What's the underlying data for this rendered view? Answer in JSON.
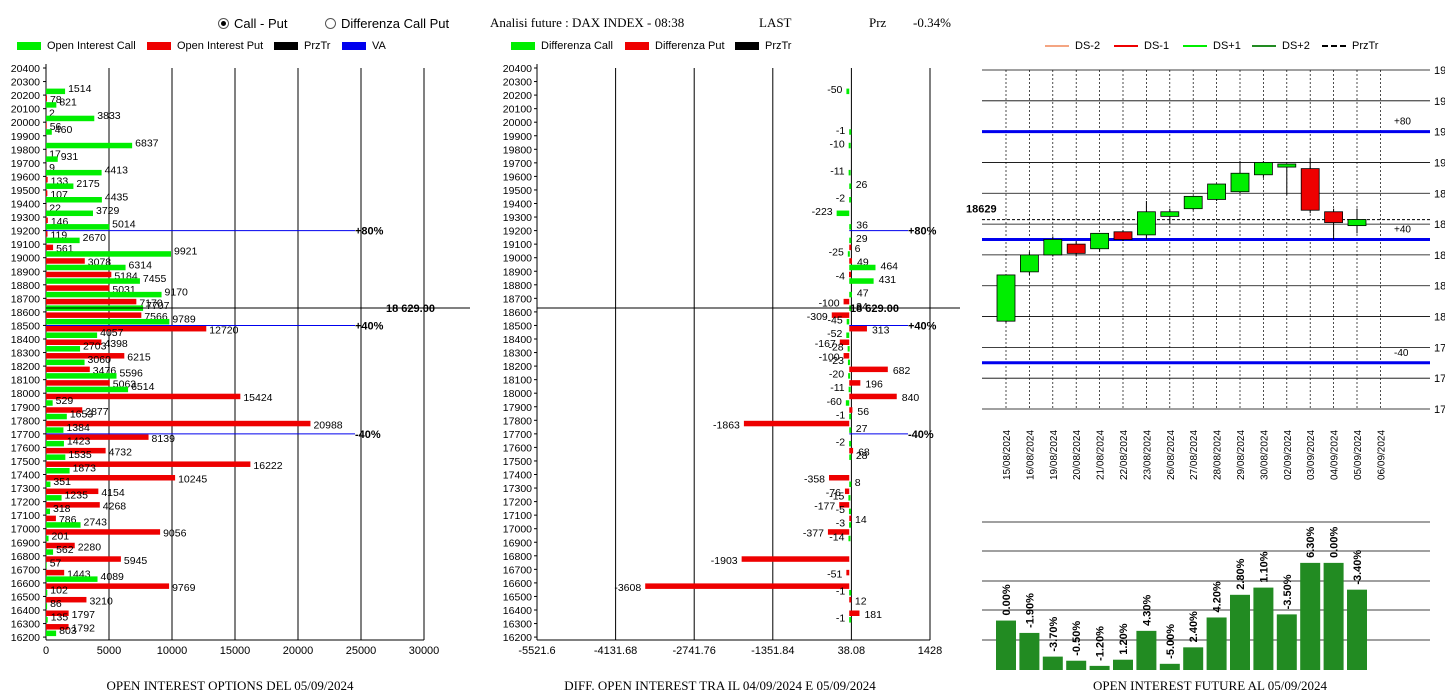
{
  "header": {
    "radio_call_put": "Call - Put",
    "radio_diff": "Differenza Call Put",
    "analisi": "Analisi future : DAX INDEX - 08:38",
    "last_label": "LAST",
    "prz_label": "Prz",
    "prz_value": "-0.34%"
  },
  "legend1": {
    "oi_call": "Open Interest Call",
    "oi_put": "Open Interest Put",
    "prztr": "PrzTr",
    "va": "VA"
  },
  "legend2": {
    "diff_call": "Differenza Call",
    "diff_put": "Differenza Put",
    "prztr": "PrzTr"
  },
  "legend3": {
    "ds_m2": "DS-2",
    "ds_m1": "DS-1",
    "ds_p1": "DS+1",
    "ds_p2": "DS+2",
    "prztr": "PrzTr"
  },
  "footers": {
    "chart1": "OPEN INTEREST OPTIONS DEL 05/09/2024",
    "chart2": "DIFF. OPEN INTEREST TRA IL 04/09/2024 E 05/09/2024",
    "chart3": "OPEN INTEREST FUTURE AL 05/09/2024"
  },
  "colors": {
    "call": "#00ee00",
    "put": "#ee0000",
    "va": "#0000ee",
    "bull": "#00ee00",
    "bear": "#ee0000",
    "oi_bar": "#228b22"
  },
  "chart_data": [
    {
      "type": "bar",
      "orientation": "horizontal",
      "strikes": [
        20400,
        20300,
        20200,
        20100,
        20000,
        19900,
        19800,
        19700,
        19600,
        19500,
        19400,
        19300,
        19200,
        19100,
        19000,
        18900,
        18800,
        18700,
        18600,
        18500,
        18400,
        18300,
        18200,
        18100,
        18000,
        17900,
        17800,
        17700,
        17600,
        17500,
        17400,
        17300,
        17200,
        17100,
        17000,
        16900,
        16800,
        16700,
        16600,
        16500,
        16400,
        16300,
        16200
      ],
      "series": [
        {
          "name": "Open Interest Call",
          "values": [
            0,
            0,
            1514,
            821,
            3833,
            460,
            6837,
            931,
            4413,
            2175,
            4435,
            3729,
            5014,
            2670,
            9921,
            6314,
            7455,
            9170,
            7707,
            9789,
            4057,
            2703,
            3060,
            5596,
            6514,
            529,
            1653,
            1384,
            1423,
            1535,
            1873,
            351,
            1235,
            318,
            2743,
            201,
            562,
            57,
            4089,
            102,
            86,
            135,
            803
          ]
        },
        {
          "name": "Open Interest Put",
          "values": [
            0,
            0,
            78,
            2,
            56,
            0,
            17,
            9,
            133,
            107,
            22,
            146,
            119,
            561,
            3078,
            5184,
            5031,
            7170,
            7566,
            12720,
            4398,
            6215,
            3476,
            5063,
            15424,
            2877,
            20988,
            8139,
            4732,
            16222,
            10245,
            4154,
            4268,
            786,
            9056,
            2280,
            5945,
            1443,
            9769,
            3210,
            1797,
            1792,
            0
          ]
        }
      ],
      "prztr": {
        "value": 18629,
        "label": "18 629.00"
      },
      "va_lines": [
        {
          "strike": 19200,
          "label": "+80%"
        },
        {
          "strike": 18500,
          "label": "+40%"
        },
        {
          "strike": 17700,
          "label": "-40%"
        }
      ],
      "xlim": [
        0,
        30000
      ],
      "xticks": [
        "0",
        "5000",
        "10000",
        "15000",
        "20000",
        "25000",
        "30000"
      ]
    },
    {
      "type": "bar",
      "orientation": "horizontal",
      "strikes": [
        20400,
        20300,
        20200,
        20100,
        20000,
        19900,
        19800,
        19700,
        19600,
        19500,
        19400,
        19300,
        19200,
        19100,
        19000,
        18900,
        18800,
        18700,
        18600,
        18500,
        18400,
        18300,
        18200,
        18100,
        18000,
        17900,
        17800,
        17700,
        17600,
        17500,
        17400,
        17300,
        17200,
        17100,
        17000,
        16900,
        16800,
        16700,
        16600,
        16500,
        16400,
        16300,
        16200
      ],
      "series": [
        {
          "name": "Differenza Call",
          "values": [
            null,
            null,
            -50,
            null,
            null,
            -1,
            -10,
            null,
            -11,
            26,
            -2,
            -223,
            36,
            29,
            -25,
            464,
            431,
            47,
            34,
            -45,
            -52,
            -28,
            -23,
            -20,
            -11,
            -60,
            -1,
            27,
            -2,
            28,
            null,
            8,
            -15,
            -5,
            -3,
            -14,
            null,
            null,
            null,
            -1,
            null,
            -1,
            null
          ]
        },
        {
          "name": "Differenza Put",
          "values": [
            null,
            null,
            null,
            null,
            null,
            null,
            null,
            null,
            null,
            null,
            null,
            null,
            null,
            6,
            49,
            -4,
            null,
            -100,
            -309,
            313,
            -167,
            -100,
            682,
            196,
            840,
            56,
            -1863,
            null,
            68,
            null,
            -358,
            -76,
            -177,
            14,
            -377,
            null,
            -1903,
            -51,
            -3608,
            12,
            181,
            null,
            null
          ]
        }
      ],
      "prztr": {
        "value": 18629,
        "label": "18 629.00"
      },
      "va_lines": [
        {
          "strike": 19200,
          "label": "+80%"
        },
        {
          "strike": 18500,
          "label": "+40%"
        },
        {
          "strike": 17700,
          "label": "-40%"
        }
      ],
      "xlim": [
        -5521.6,
        1428
      ],
      "xticks": [
        "-5521.6",
        "-4131.68",
        "-2741.76",
        "-1351.84",
        "38.08",
        "1428"
      ]
    },
    {
      "type": "candlestick",
      "dates": [
        "15/08/2024",
        "16/08/2024",
        "19/08/2024",
        "20/08/2024",
        "21/08/2024",
        "22/08/2024",
        "23/08/2024",
        "26/08/2024",
        "27/08/2024",
        "28/08/2024",
        "29/08/2024",
        "30/08/2024",
        "02/09/2024",
        "03/09/2024",
        "04/09/2024",
        "05/09/2024",
        "06/09/2024"
      ],
      "candles": [
        {
          "open": 17970,
          "high": 18270,
          "low": 17960,
          "close": 18270
        },
        {
          "open": 18290,
          "high": 18420,
          "low": 18270,
          "close": 18400
        },
        {
          "open": 18400,
          "high": 18520,
          "low": 18390,
          "close": 18500
        },
        {
          "open": 18470,
          "high": 18490,
          "low": 18390,
          "close": 18410
        },
        {
          "open": 18440,
          "high": 18540,
          "low": 18420,
          "close": 18540
        },
        {
          "open": 18550,
          "high": 18560,
          "low": 18490,
          "close": 18500
        },
        {
          "open": 18530,
          "high": 18750,
          "low": 18500,
          "close": 18680
        },
        {
          "open": 18650,
          "high": 18700,
          "low": 18600,
          "close": 18680
        },
        {
          "open": 18700,
          "high": 18780,
          "low": 18690,
          "close": 18780
        },
        {
          "open": 18760,
          "high": 18860,
          "low": 18750,
          "close": 18860
        },
        {
          "open": 18810,
          "high": 19010,
          "low": 18800,
          "close": 18930
        },
        {
          "open": 18920,
          "high": 19010,
          "low": 18900,
          "close": 19000
        },
        {
          "open": 18970,
          "high": 18990,
          "low": 18790,
          "close": 18990
        },
        {
          "open": 18960,
          "high": 19030,
          "low": 18670,
          "close": 18690
        },
        {
          "open": 18680,
          "high": 18700,
          "low": 18500,
          "close": 18610
        },
        {
          "open": 18590,
          "high": 18700,
          "low": 18540,
          "close": 18630
        }
      ],
      "prztr": {
        "value": 18629,
        "label": "18629"
      },
      "va_lines": [
        {
          "value": 19200,
          "label": "+80"
        },
        {
          "value": 18500,
          "label": "+40"
        },
        {
          "value": 17700,
          "label": "-40"
        }
      ],
      "ylim": [
        17400,
        19600
      ],
      "yticks": [
        "17400",
        "17600",
        "17800",
        "18000",
        "18200",
        "18400",
        "18600",
        "18800",
        "19000",
        "19200",
        "19400",
        "19600"
      ]
    },
    {
      "type": "bar",
      "values": [
        4.8,
        3.6,
        1.3,
        0.9,
        0.4,
        1.0,
        3.8,
        0.6,
        2.2,
        5.1,
        7.3,
        8.0,
        5.4,
        10.4,
        10.4,
        7.8
      ],
      "labels": [
        "0.00%",
        "-1.90%",
        "-3.70%",
        "-0.50%",
        "-1.20%",
        "1.20%",
        "4.30%",
        "-5.00%",
        "2.40%",
        "4.20%",
        "2.80%",
        "1.10%",
        "-3.50%",
        "6.30%",
        "0.00%",
        "-3.40%"
      ]
    }
  ]
}
